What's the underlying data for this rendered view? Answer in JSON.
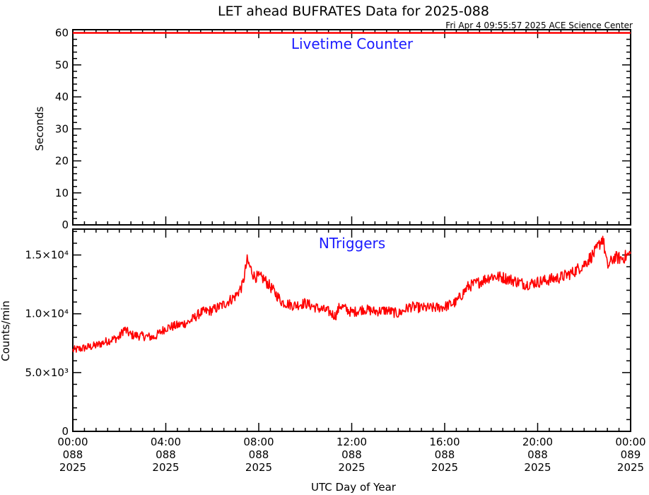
{
  "title": "LET ahead BUFRATES Data for 2025-088",
  "subtitle": "Fri Apr  4 09:55:57 2025 ACE Science Center",
  "colors": {
    "data_line": "#ff0000",
    "panel_title": "#1a1aff",
    "axes": "#000000",
    "background": "#ffffff"
  },
  "chart_data": [
    {
      "type": "line",
      "title": "Livetime Counter",
      "ylabel": "Seconds",
      "ylim": [
        0,
        61
      ],
      "yticks": [
        "0",
        "10",
        "20",
        "30",
        "40",
        "50",
        "60"
      ],
      "ytick_values": [
        0,
        10,
        20,
        30,
        40,
        50,
        60
      ],
      "xlim": [
        "2025-088 00:00",
        "2025-089 00:00"
      ],
      "series": [
        {
          "x": [
            "2025-088 00:00",
            "2025-089 00:00"
          ],
          "values": [
            60,
            60
          ]
        }
      ]
    },
    {
      "type": "line",
      "title": "NTriggers",
      "ylabel": "Counts/min",
      "xlabel": "UTC Day of Year",
      "ylim": [
        0,
        17200
      ],
      "yticks": [
        "0",
        "5.0×10³",
        "1.0×10⁴",
        "1.5×10⁴"
      ],
      "ytick_values": [
        0,
        5000,
        10000,
        15000
      ],
      "xticks": [
        {
          "time": "00:00",
          "day": "088",
          "year": "2025"
        },
        {
          "time": "04:00",
          "day": "088",
          "year": "2025"
        },
        {
          "time": "08:00",
          "day": "088",
          "year": "2025"
        },
        {
          "time": "12:00",
          "day": "088",
          "year": "2025"
        },
        {
          "time": "16:00",
          "day": "088",
          "year": "2025"
        },
        {
          "time": "20:00",
          "day": "088",
          "year": "2025"
        },
        {
          "time": "00:00",
          "day": "089",
          "year": "2025"
        }
      ],
      "x_hours": [
        0,
        0.5,
        1,
        1.5,
        2,
        2.2,
        2.5,
        3,
        3.5,
        4,
        4.5,
        5,
        5.5,
        6,
        6.5,
        7,
        7.3,
        7.5,
        7.8,
        8.2,
        8.5,
        9,
        9.5,
        10,
        10.5,
        11,
        11.3,
        11.5,
        12,
        12.5,
        13,
        13.5,
        14,
        14.5,
        15,
        15.5,
        16,
        16.5,
        17,
        17.5,
        18,
        18.5,
        19,
        19.5,
        20,
        20.5,
        21,
        21.5,
        22,
        22.5,
        22.8,
        23,
        23.3,
        23.6,
        24
      ],
      "values": [
        6900,
        7100,
        7300,
        7700,
        8000,
        8700,
        8200,
        8100,
        8000,
        8800,
        9000,
        9300,
        10100,
        10300,
        10800,
        11500,
        12400,
        14500,
        13200,
        13000,
        12300,
        11000,
        10700,
        10900,
        10500,
        10200,
        9800,
        10700,
        10100,
        10400,
        10200,
        10300,
        10000,
        10600,
        10500,
        10500,
        10600,
        11000,
        12300,
        12700,
        13200,
        13100,
        12800,
        12500,
        12700,
        12900,
        13100,
        13500,
        14200,
        15300,
        16500,
        14000,
        14800,
        14700,
        15100
      ]
    }
  ],
  "x_axis_label": "UTC Day of Year"
}
